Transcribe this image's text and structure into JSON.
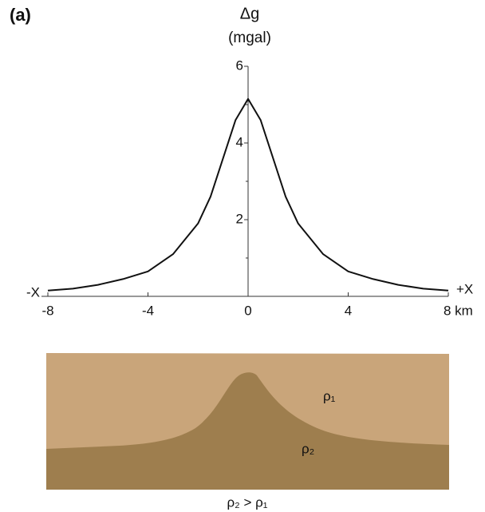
{
  "chart_data": {
    "type": "line",
    "panel_label": "(a)",
    "y_label": "Δg",
    "y_unit": "(mgal)",
    "x_left_label": "-X",
    "x_right_label": "+X",
    "x": [
      -8,
      -7,
      -6,
      -5,
      -4,
      -3,
      -2,
      -1.5,
      -1,
      -0.5,
      0,
      0.5,
      1,
      1.5,
      2,
      3,
      4,
      5,
      6,
      7,
      8
    ],
    "series": [
      {
        "color": "#111111",
        "values": [
          0.15,
          0.2,
          0.3,
          0.45,
          0.65,
          1.1,
          1.9,
          2.6,
          3.6,
          4.6,
          5.15,
          4.6,
          3.6,
          2.6,
          1.9,
          1.1,
          0.65,
          0.45,
          0.3,
          0.2,
          0.15
        ]
      }
    ],
    "xlim": [
      -8,
      8
    ],
    "xticks": [
      -8,
      -4,
      0,
      4,
      {
        "value": 8,
        "label": "8 km"
      }
    ],
    "ylim": [
      0,
      6
    ],
    "yticks": [
      2,
      4,
      6
    ],
    "yminorticks": [
      1,
      3,
      5
    ]
  },
  "section": {
    "upper_label": "ρ₁",
    "lower_label": "ρ₂",
    "caption": "ρ₂ > ρ₁"
  }
}
